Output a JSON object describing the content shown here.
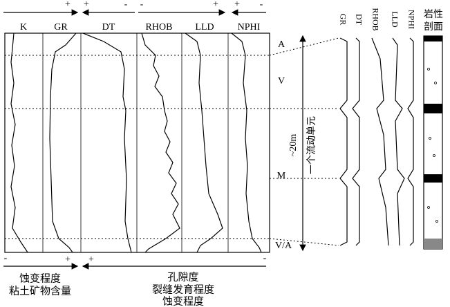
{
  "top_signs": [
    "+",
    "+",
    "-",
    "-",
    "+",
    "+",
    "-"
  ],
  "log_headers": [
    "K",
    "GR",
    "DT",
    "RHOB",
    "LLD",
    "NPHI"
  ],
  "zones": [
    "A",
    "V",
    "M",
    "V/A"
  ],
  "thickness": "~20m",
  "unit_label": "一个流动单元",
  "right_headers": [
    "GR",
    "DT",
    "RHOB",
    "LLD",
    "NPHI"
  ],
  "lithology": [
    "岩性",
    "剖面"
  ],
  "bottom_left": {
    "signs": [
      "-",
      "+"
    ],
    "lines": [
      "蚀变程度",
      "粘土矿物含量"
    ]
  },
  "bottom_right": {
    "signs": [
      "+",
      "-"
    ],
    "lines": [
      "孔隙度",
      "裂缝发育程度",
      "蚀变程度"
    ]
  }
}
